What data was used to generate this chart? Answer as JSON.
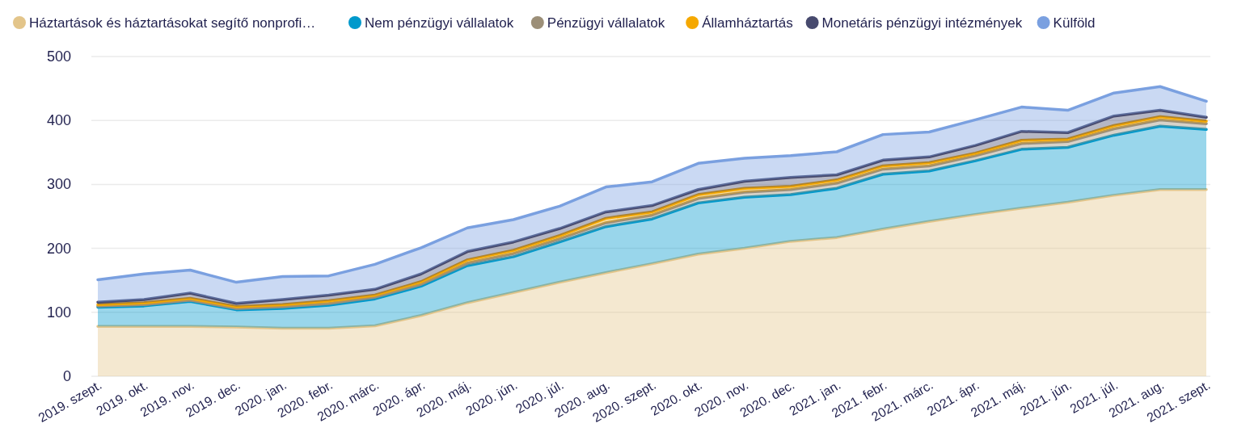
{
  "chart_data": {
    "type": "area",
    "stacked": true,
    "legend": "top",
    "grid": "y",
    "categories": [
      "2019. szept.",
      "2019. okt.",
      "2019. nov.",
      "2019. dec.",
      "2020. jan.",
      "2020. febr.",
      "2020. márc.",
      "2020. ápr.",
      "2020. máj.",
      "2020. jún.",
      "2020. júl.",
      "2020. aug.",
      "2020. szept.",
      "2020. okt.",
      "2020. nov.",
      "2020. dec.",
      "2021. jan.",
      "2021. febr.",
      "2021. márc.",
      "2021. ápr.",
      "2021. máj.",
      "2021. jún.",
      "2021. júl.",
      "2021. aug.",
      "2021. szept."
    ],
    "ylim": [
      0,
      500
    ],
    "yticks": [
      0,
      100,
      200,
      300,
      400,
      500
    ],
    "series": [
      {
        "name": "Háztartások és háztartásokat segítő nonprofi…",
        "color": "#e3c58a",
        "values": [
          78,
          78,
          78,
          77,
          75,
          75,
          79,
          95,
          115,
          131,
          147,
          162,
          176,
          191,
          200,
          211,
          217,
          230,
          242,
          253,
          263,
          272,
          283,
          292,
          292
        ]
      },
      {
        "name": "Nem pénzügyi vállalatok",
        "color": "#0099cc",
        "values": [
          30,
          32,
          39,
          27,
          31,
          36,
          42,
          46,
          58,
          56,
          63,
          72,
          70,
          80,
          80,
          73,
          77,
          86,
          79,
          84,
          92,
          86,
          94,
          99,
          94
        ]
      },
      {
        "name": "Pénzügyi vállalatok",
        "color": "#9c8f78",
        "values": [
          2,
          2,
          2,
          2,
          3,
          3,
          3,
          3,
          4,
          5,
          5,
          6,
          6,
          7,
          8,
          8,
          8,
          8,
          8,
          8,
          9,
          9,
          10,
          10,
          9
        ]
      },
      {
        "name": "Államháztartás",
        "color": "#f5a800",
        "values": [
          2,
          3,
          3,
          3,
          3,
          4,
          3,
          4,
          5,
          5,
          5,
          7,
          5,
          6,
          6,
          5,
          5,
          5,
          5,
          4,
          5,
          4,
          5,
          5,
          4
        ]
      },
      {
        "name": "Monetáris pénzügyi intézmények",
        "color": "#474a6e",
        "values": [
          4,
          5,
          8,
          5,
          8,
          9,
          9,
          12,
          13,
          13,
          11,
          10,
          10,
          8,
          11,
          14,
          8,
          9,
          9,
          12,
          14,
          10,
          15,
          10,
          6
        ]
      },
      {
        "name": "Külföld",
        "color": "#7aa0e0",
        "values": [
          35,
          40,
          36,
          33,
          36,
          30,
          39,
          41,
          37,
          35,
          35,
          39,
          37,
          41,
          36,
          34,
          36,
          40,
          39,
          40,
          38,
          35,
          36,
          37,
          25
        ]
      }
    ]
  }
}
